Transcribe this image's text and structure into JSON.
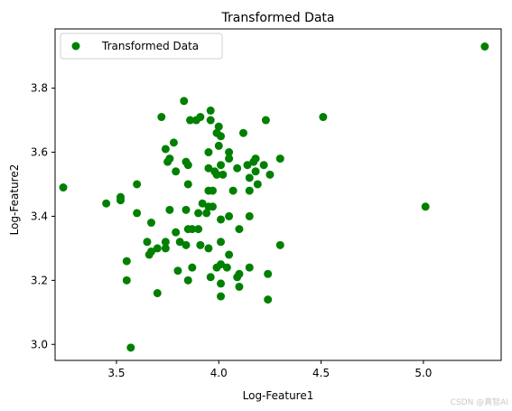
{
  "chart_data": {
    "type": "scatter",
    "title": "Transformed Data",
    "xlabel": "Log-Feature1",
    "ylabel": "Log-Feature2",
    "xlim": [
      3.2,
      5.38
    ],
    "ylim": [
      2.95,
      3.985
    ],
    "xticks": [
      3.5,
      4.0,
      4.5,
      5.0
    ],
    "yticks": [
      3.0,
      3.2,
      3.4,
      3.6,
      3.8
    ],
    "xtick_labels": [
      "3.5",
      "4.0",
      "4.5",
      "5.0"
    ],
    "ytick_labels": [
      "3.0",
      "3.2",
      "3.4",
      "3.6",
      "3.8"
    ],
    "grid": false,
    "legend_position": "top-left",
    "series": [
      {
        "name": "Transformed Data",
        "color": "#008000",
        "marker": "circle",
        "points": [
          [
            5.3,
            3.93
          ],
          [
            3.24,
            3.49
          ],
          [
            3.45,
            3.44
          ],
          [
            3.52,
            3.45
          ],
          [
            3.52,
            3.46
          ],
          [
            3.6,
            3.5
          ],
          [
            3.6,
            3.41
          ],
          [
            3.55,
            3.26
          ],
          [
            3.55,
            3.2
          ],
          [
            3.57,
            2.99
          ],
          [
            3.7,
            3.16
          ],
          [
            3.72,
            3.71
          ],
          [
            3.74,
            3.61
          ],
          [
            3.75,
            3.57
          ],
          [
            3.76,
            3.58
          ],
          [
            3.78,
            3.63
          ],
          [
            3.79,
            3.54
          ],
          [
            3.83,
            3.76
          ],
          [
            3.84,
            3.57
          ],
          [
            3.85,
            3.56
          ],
          [
            3.85,
            3.5
          ],
          [
            3.86,
            3.7
          ],
          [
            3.89,
            3.7
          ],
          [
            3.91,
            3.71
          ],
          [
            3.96,
            3.73
          ],
          [
            3.96,
            3.7
          ],
          [
            3.99,
            3.66
          ],
          [
            4.0,
            3.68
          ],
          [
            4.01,
            3.65
          ],
          [
            4.0,
            3.62
          ],
          [
            3.95,
            3.6
          ],
          [
            4.05,
            3.6
          ],
          [
            4.05,
            3.58
          ],
          [
            3.95,
            3.55
          ],
          [
            3.98,
            3.54
          ],
          [
            3.99,
            3.53
          ],
          [
            4.02,
            3.53
          ],
          [
            4.01,
            3.56
          ],
          [
            4.09,
            3.55
          ],
          [
            4.12,
            3.66
          ],
          [
            4.14,
            3.56
          ],
          [
            4.17,
            3.57
          ],
          [
            4.18,
            3.58
          ],
          [
            4.15,
            3.52
          ],
          [
            4.18,
            3.54
          ],
          [
            4.19,
            3.5
          ],
          [
            4.22,
            3.56
          ],
          [
            4.23,
            3.7
          ],
          [
            4.25,
            3.53
          ],
          [
            4.3,
            3.58
          ],
          [
            3.95,
            3.48
          ],
          [
            3.97,
            3.48
          ],
          [
            4.07,
            3.48
          ],
          [
            4.15,
            3.48
          ],
          [
            3.92,
            3.44
          ],
          [
            3.95,
            3.43
          ],
          [
            3.97,
            3.43
          ],
          [
            3.94,
            3.41
          ],
          [
            3.9,
            3.41
          ],
          [
            3.84,
            3.42
          ],
          [
            3.76,
            3.42
          ],
          [
            3.67,
            3.38
          ],
          [
            4.01,
            3.39
          ],
          [
            4.05,
            3.4
          ],
          [
            4.15,
            3.4
          ],
          [
            4.1,
            3.36
          ],
          [
            3.85,
            3.36
          ],
          [
            3.87,
            3.36
          ],
          [
            3.9,
            3.36
          ],
          [
            3.79,
            3.35
          ],
          [
            3.81,
            3.32
          ],
          [
            3.84,
            3.31
          ],
          [
            3.91,
            3.31
          ],
          [
            3.95,
            3.3
          ],
          [
            4.01,
            3.32
          ],
          [
            3.65,
            3.32
          ],
          [
            3.7,
            3.3
          ],
          [
            3.74,
            3.32
          ],
          [
            3.74,
            3.3
          ],
          [
            3.67,
            3.29
          ],
          [
            3.66,
            3.28
          ],
          [
            4.05,
            3.28
          ],
          [
            4.3,
            3.31
          ],
          [
            3.87,
            3.24
          ],
          [
            3.8,
            3.23
          ],
          [
            3.85,
            3.2
          ],
          [
            3.96,
            3.21
          ],
          [
            3.99,
            3.24
          ],
          [
            4.01,
            3.25
          ],
          [
            4.04,
            3.24
          ],
          [
            4.09,
            3.21
          ],
          [
            4.1,
            3.22
          ],
          [
            4.15,
            3.24
          ],
          [
            4.24,
            3.22
          ],
          [
            4.01,
            3.19
          ],
          [
            4.1,
            3.18
          ],
          [
            4.01,
            3.15
          ],
          [
            4.24,
            3.14
          ],
          [
            4.51,
            3.71
          ],
          [
            5.01,
            3.43
          ]
        ]
      }
    ]
  },
  "watermark": "CSDN @真智AI"
}
